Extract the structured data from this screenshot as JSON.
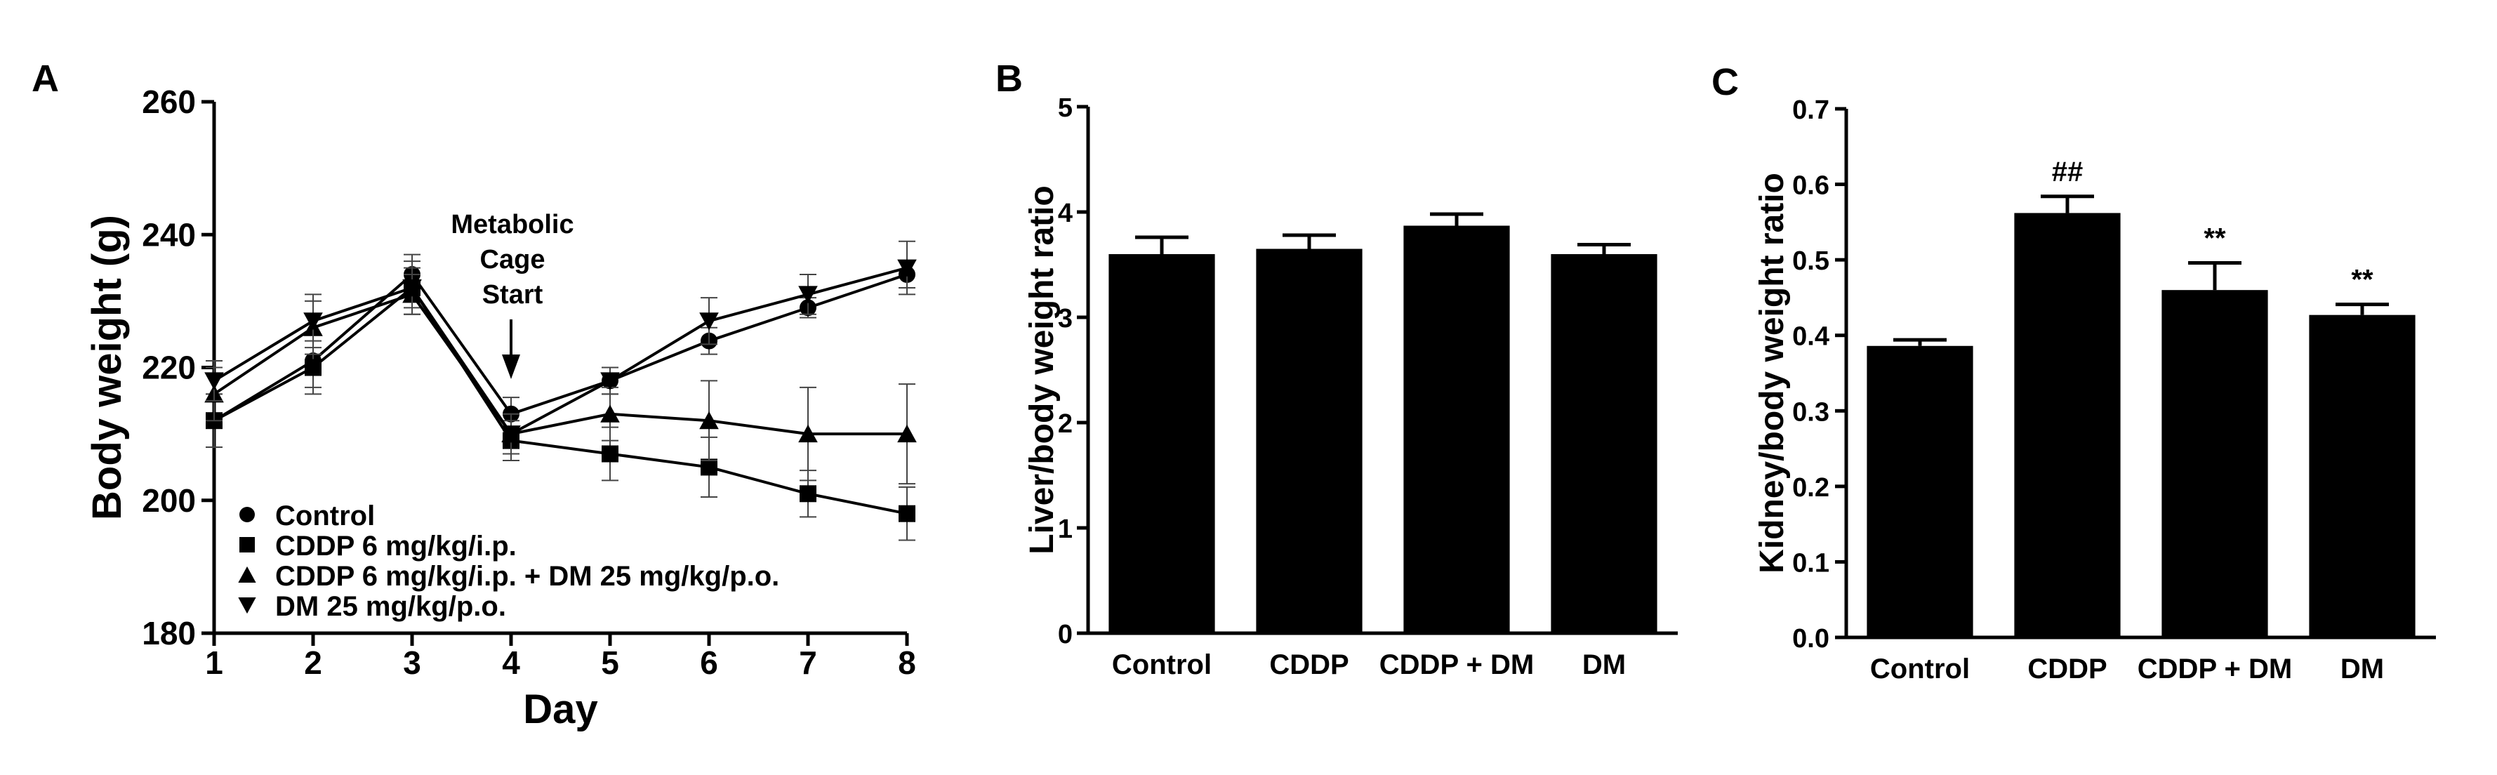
{
  "chart_data": [
    {
      "panel": "A",
      "type": "line",
      "title": "",
      "xlabel": "Day",
      "ylabel": "Body weight (g)",
      "x": [
        1,
        2,
        3,
        4,
        5,
        6,
        7,
        8
      ],
      "xticks": [
        "1",
        "2",
        "3",
        "4",
        "5",
        "6",
        "7",
        "8"
      ],
      "xlim": [
        1,
        8
      ],
      "ylim": [
        180,
        260
      ],
      "yticks": [
        "180",
        "200",
        "220",
        "240",
        "260"
      ],
      "annotation": {
        "lines": [
          "Metabolic",
          "Cage",
          "Start"
        ],
        "x": 4
      },
      "legend_position": "bottom-left",
      "series": [
        {
          "name": "Control",
          "marker": "circle",
          "values": [
            212,
            221,
            234,
            213,
            218,
            224,
            229,
            234
          ],
          "errors": [
            4,
            4,
            3,
            2.5,
            2,
            2,
            1.5,
            2
          ]
        },
        {
          "name": "CDDP 6 mg/kg/i.p.",
          "marker": "square",
          "values": [
            212,
            220,
            232,
            209,
            207,
            205,
            201,
            198
          ],
          "errors": [
            4,
            4,
            3,
            3,
            4,
            4.5,
            3.5,
            4
          ]
        },
        {
          "name": "CDDP 6 mg/kg/i.p. + DM 25 mg/kg/p.o.",
          "marker": "triangle-up",
          "values": [
            216,
            226,
            231,
            210,
            213,
            212,
            210,
            210
          ],
          "errors": [
            4,
            4,
            3,
            3,
            4,
            6,
            7,
            7.5
          ]
        },
        {
          "name": "DM 25 mg/kg/p.o.",
          "marker": "triangle-down",
          "values": [
            218,
            227,
            232,
            210,
            218,
            227,
            231,
            235
          ],
          "errors": [
            3,
            4,
            4,
            3,
            2,
            3.5,
            3,
            4
          ]
        }
      ]
    },
    {
      "panel": "B",
      "type": "bar",
      "title": "",
      "xlabel": "",
      "ylabel": "Liver/body weight ratio",
      "categories": [
        "Control",
        "CDDP",
        "CDDP + DM",
        "DM"
      ],
      "values": [
        3.6,
        3.65,
        3.87,
        3.6
      ],
      "errors": [
        0.16,
        0.13,
        0.11,
        0.09
      ],
      "significance": [
        "",
        "",
        "",
        ""
      ],
      "ylim": [
        0,
        5
      ],
      "yticks": [
        "0",
        "1",
        "2",
        "3",
        "4",
        "5"
      ]
    },
    {
      "panel": "C",
      "type": "bar",
      "title": "",
      "xlabel": "",
      "ylabel": "Kidney/body weight ratio",
      "categories": [
        "Control",
        "CDDP",
        "CDDP + DM",
        "DM"
      ],
      "values": [
        0.386,
        0.562,
        0.46,
        0.427
      ],
      "errors": [
        0.008,
        0.022,
        0.036,
        0.014
      ],
      "significance": [
        "",
        "##",
        "**",
        "**"
      ],
      "ylim": [
        0,
        0.7
      ],
      "yticks": [
        "0.0",
        "0.1",
        "0.2",
        "0.3",
        "0.4",
        "0.5",
        "0.6",
        "0.7"
      ]
    }
  ]
}
